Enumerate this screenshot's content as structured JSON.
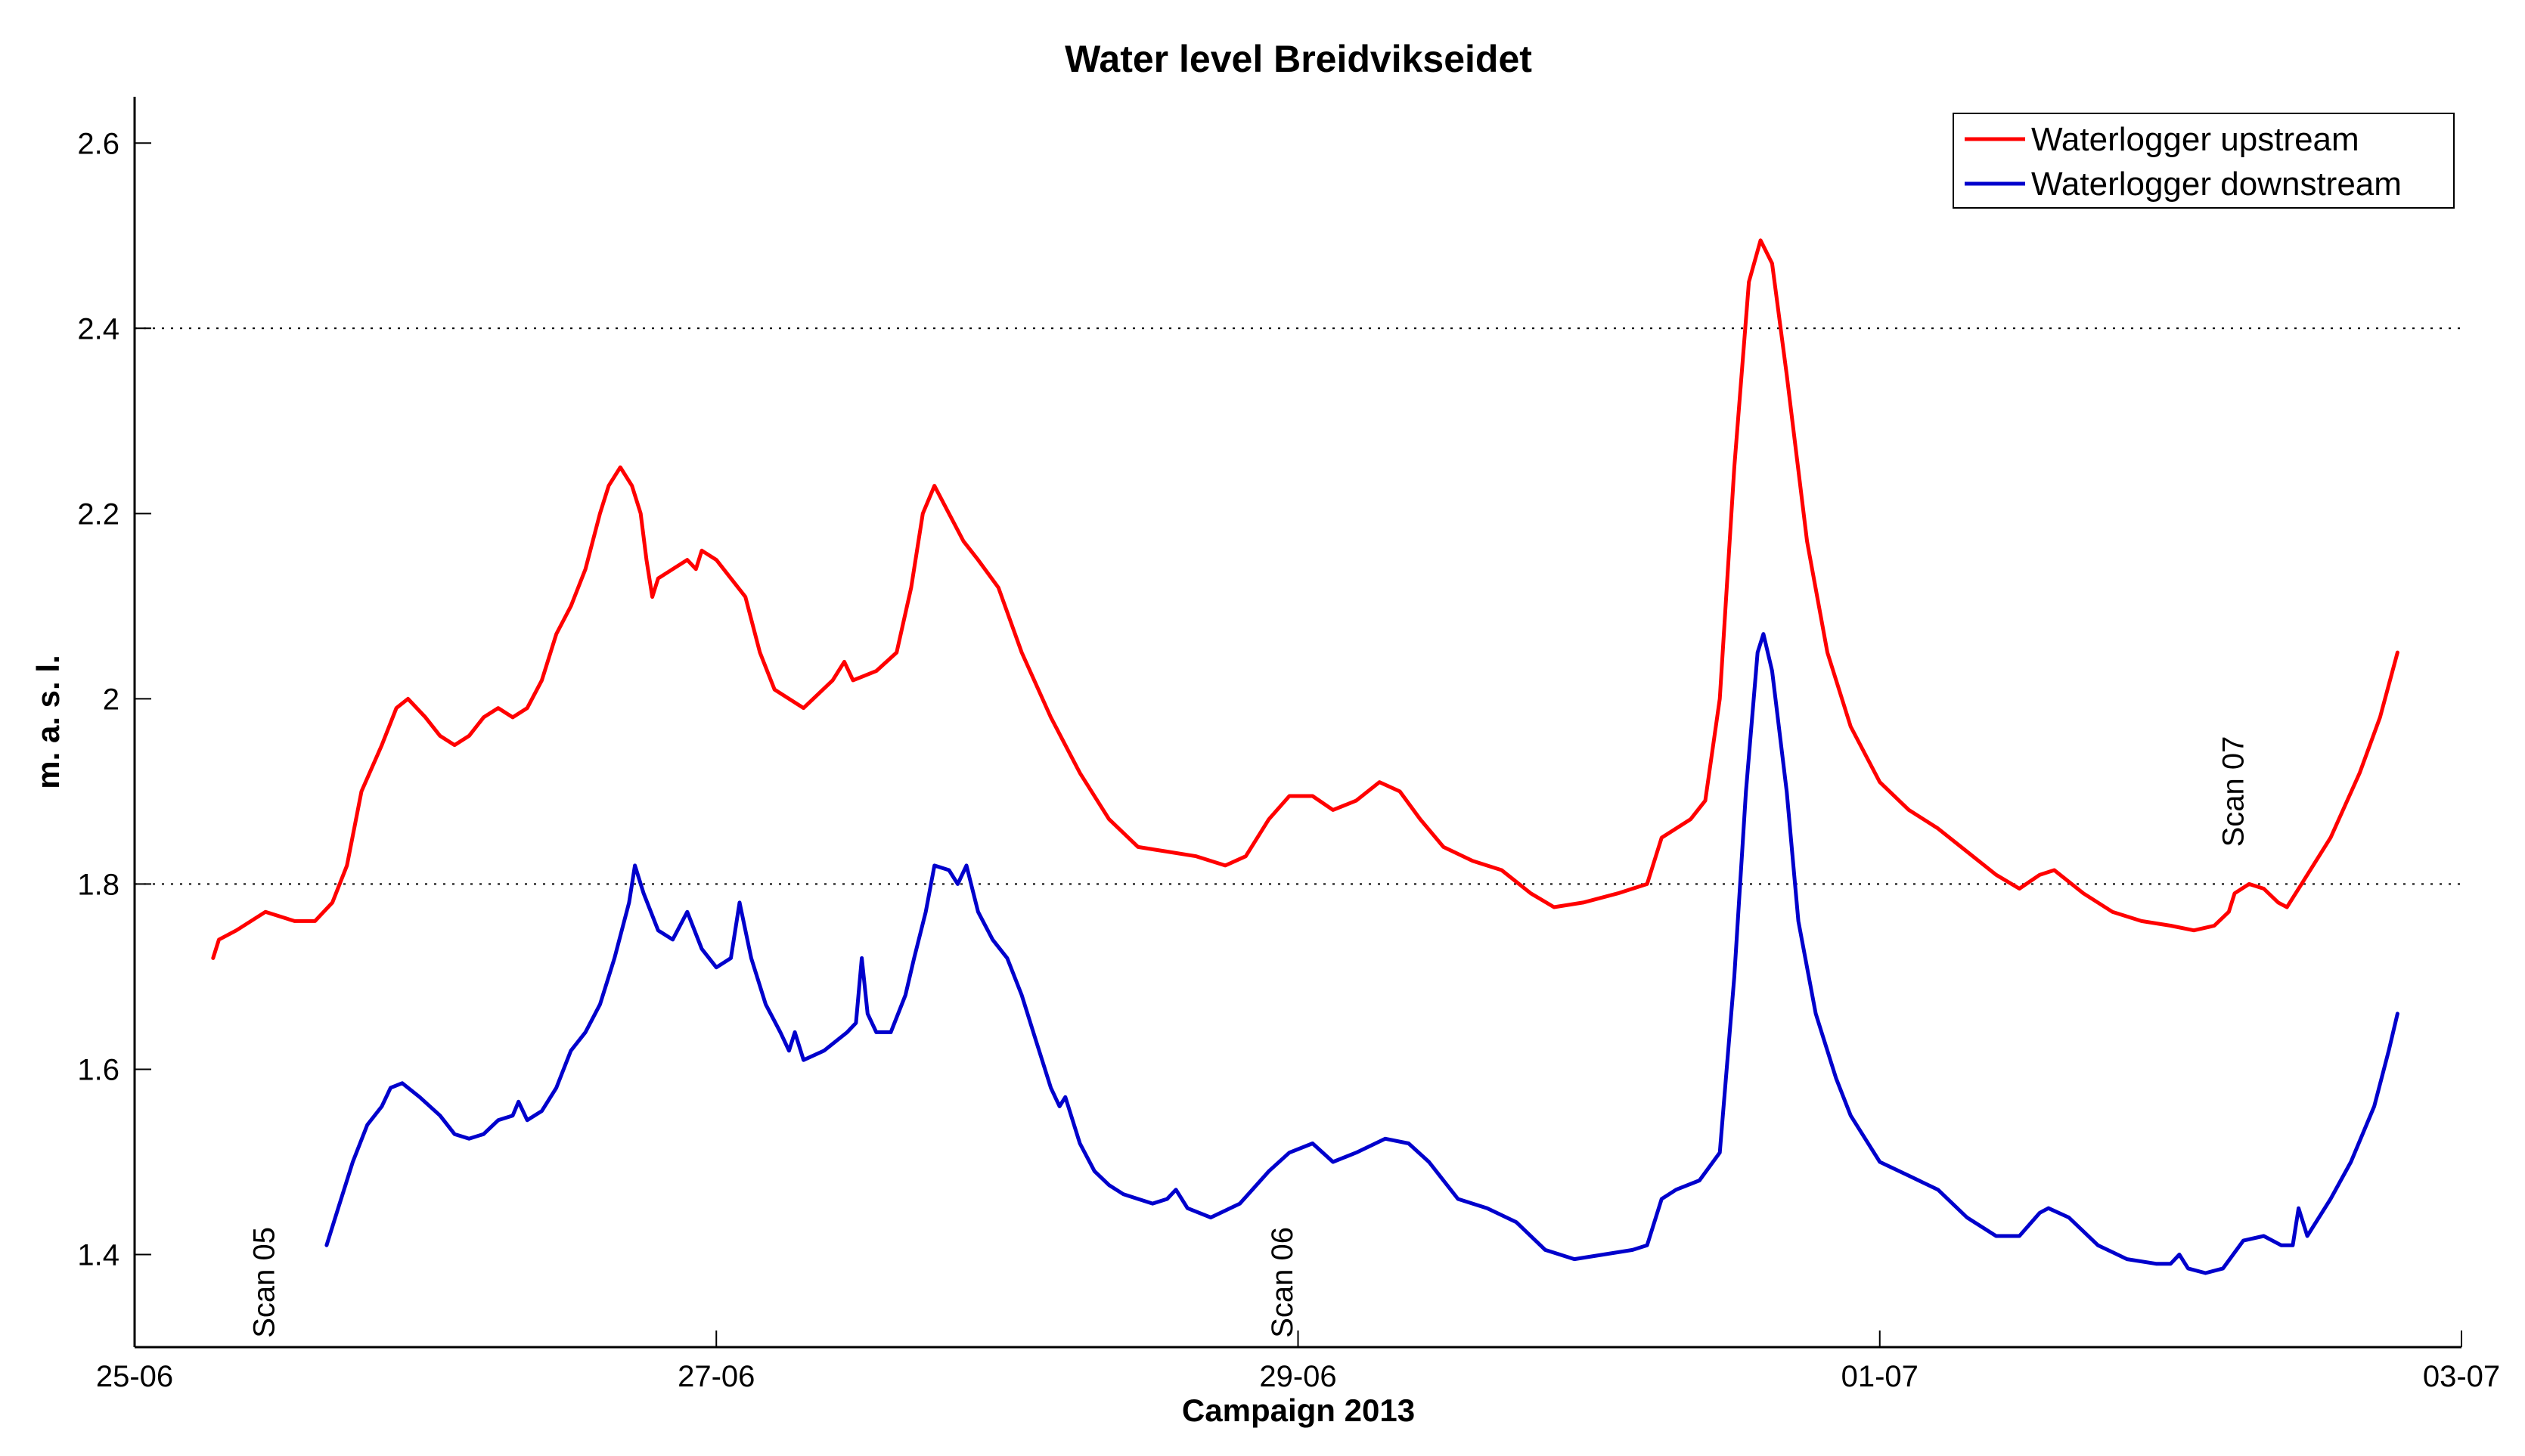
{
  "chart_data": {
    "type": "line",
    "title": "Water level Breidvikseidet",
    "xlabel": "Campaign 2013",
    "ylabel": "m. a. s. l.",
    "xlim": [
      0,
      8
    ],
    "ylim": [
      1.3,
      2.65
    ],
    "x_tick_values": [
      0,
      2,
      4,
      6,
      8
    ],
    "x_tick_labels": [
      "25-06",
      "27-06",
      "29-06",
      "01-07",
      "03-07"
    ],
    "y_tick_values": [
      1.4,
      1.6,
      1.8,
      2.0,
      2.2,
      2.4,
      2.6
    ],
    "y_tick_labels": [
      "1.4",
      "1.6",
      "1.8",
      "2",
      "2.2",
      "2.4",
      "2.6"
    ],
    "grid_y": [
      1.8,
      2.4
    ],
    "legend_position": "top-right",
    "series": [
      {
        "name": "Waterlogger upstream",
        "color": "#ff0000",
        "points": [
          [
            0.27,
            1.72
          ],
          [
            0.29,
            1.74
          ],
          [
            0.35,
            1.75
          ],
          [
            0.45,
            1.77
          ],
          [
            0.55,
            1.76
          ],
          [
            0.62,
            1.76
          ],
          [
            0.68,
            1.78
          ],
          [
            0.73,
            1.82
          ],
          [
            0.78,
            1.9
          ],
          [
            0.85,
            1.95
          ],
          [
            0.9,
            1.99
          ],
          [
            0.94,
            2.0
          ],
          [
            1.0,
            1.98
          ],
          [
            1.05,
            1.96
          ],
          [
            1.1,
            1.95
          ],
          [
            1.15,
            1.96
          ],
          [
            1.2,
            1.98
          ],
          [
            1.25,
            1.99
          ],
          [
            1.3,
            1.98
          ],
          [
            1.35,
            1.99
          ],
          [
            1.4,
            2.02
          ],
          [
            1.45,
            2.07
          ],
          [
            1.5,
            2.1
          ],
          [
            1.55,
            2.14
          ],
          [
            1.6,
            2.2
          ],
          [
            1.63,
            2.23
          ],
          [
            1.67,
            2.25
          ],
          [
            1.71,
            2.23
          ],
          [
            1.74,
            2.2
          ],
          [
            1.76,
            2.15
          ],
          [
            1.78,
            2.11
          ],
          [
            1.8,
            2.13
          ],
          [
            1.85,
            2.14
          ],
          [
            1.9,
            2.15
          ],
          [
            1.93,
            2.14
          ],
          [
            1.95,
            2.16
          ],
          [
            2.0,
            2.15
          ],
          [
            2.05,
            2.13
          ],
          [
            2.1,
            2.11
          ],
          [
            2.15,
            2.05
          ],
          [
            2.2,
            2.01
          ],
          [
            2.3,
            1.99
          ],
          [
            2.4,
            2.02
          ],
          [
            2.44,
            2.04
          ],
          [
            2.47,
            2.02
          ],
          [
            2.55,
            2.03
          ],
          [
            2.62,
            2.05
          ],
          [
            2.67,
            2.12
          ],
          [
            2.71,
            2.2
          ],
          [
            2.75,
            2.23
          ],
          [
            2.8,
            2.2
          ],
          [
            2.85,
            2.17
          ],
          [
            2.9,
            2.15
          ],
          [
            2.97,
            2.12
          ],
          [
            3.05,
            2.05
          ],
          [
            3.15,
            1.98
          ],
          [
            3.25,
            1.92
          ],
          [
            3.35,
            1.87
          ],
          [
            3.45,
            1.84
          ],
          [
            3.55,
            1.835
          ],
          [
            3.65,
            1.83
          ],
          [
            3.75,
            1.82
          ],
          [
            3.82,
            1.83
          ],
          [
            3.9,
            1.87
          ],
          [
            3.97,
            1.895
          ],
          [
            4.05,
            1.895
          ],
          [
            4.12,
            1.88
          ],
          [
            4.2,
            1.89
          ],
          [
            4.28,
            1.91
          ],
          [
            4.35,
            1.9
          ],
          [
            4.42,
            1.87
          ],
          [
            4.5,
            1.84
          ],
          [
            4.6,
            1.825
          ],
          [
            4.7,
            1.815
          ],
          [
            4.8,
            1.79
          ],
          [
            4.88,
            1.775
          ],
          [
            4.98,
            1.78
          ],
          [
            5.1,
            1.79
          ],
          [
            5.2,
            1.8
          ],
          [
            5.25,
            1.85
          ],
          [
            5.3,
            1.86
          ],
          [
            5.35,
            1.87
          ],
          [
            5.4,
            1.89
          ],
          [
            5.45,
            2.0
          ],
          [
            5.5,
            2.25
          ],
          [
            5.55,
            2.45
          ],
          [
            5.59,
            2.495
          ],
          [
            5.63,
            2.47
          ],
          [
            5.68,
            2.35
          ],
          [
            5.75,
            2.17
          ],
          [
            5.82,
            2.05
          ],
          [
            5.9,
            1.97
          ],
          [
            6.0,
            1.91
          ],
          [
            6.1,
            1.88
          ],
          [
            6.2,
            1.86
          ],
          [
            6.3,
            1.835
          ],
          [
            6.4,
            1.81
          ],
          [
            6.48,
            1.795
          ],
          [
            6.55,
            1.81
          ],
          [
            6.6,
            1.815
          ],
          [
            6.7,
            1.79
          ],
          [
            6.8,
            1.77
          ],
          [
            6.9,
            1.76
          ],
          [
            7.0,
            1.755
          ],
          [
            7.08,
            1.75
          ],
          [
            7.15,
            1.755
          ],
          [
            7.2,
            1.77
          ],
          [
            7.22,
            1.79
          ],
          [
            7.27,
            1.8
          ],
          [
            7.32,
            1.795
          ],
          [
            7.37,
            1.78
          ],
          [
            7.4,
            1.775
          ],
          [
            7.45,
            1.8
          ],
          [
            7.55,
            1.85
          ],
          [
            7.65,
            1.92
          ],
          [
            7.72,
            1.98
          ],
          [
            7.78,
            2.05
          ]
        ]
      },
      {
        "name": "Waterlogger downstream",
        "color": "#0000cc",
        "points": [
          [
            0.66,
            1.41
          ],
          [
            0.7,
            1.45
          ],
          [
            0.75,
            1.5
          ],
          [
            0.8,
            1.54
          ],
          [
            0.85,
            1.56
          ],
          [
            0.88,
            1.58
          ],
          [
            0.92,
            1.585
          ],
          [
            0.98,
            1.57
          ],
          [
            1.05,
            1.55
          ],
          [
            1.1,
            1.53
          ],
          [
            1.15,
            1.525
          ],
          [
            1.2,
            1.53
          ],
          [
            1.25,
            1.545
          ],
          [
            1.3,
            1.55
          ],
          [
            1.32,
            1.565
          ],
          [
            1.35,
            1.545
          ],
          [
            1.4,
            1.555
          ],
          [
            1.45,
            1.58
          ],
          [
            1.5,
            1.62
          ],
          [
            1.55,
            1.64
          ],
          [
            1.6,
            1.67
          ],
          [
            1.65,
            1.72
          ],
          [
            1.7,
            1.78
          ],
          [
            1.72,
            1.82
          ],
          [
            1.75,
            1.79
          ],
          [
            1.8,
            1.75
          ],
          [
            1.85,
            1.74
          ],
          [
            1.9,
            1.77
          ],
          [
            1.95,
            1.73
          ],
          [
            2.0,
            1.71
          ],
          [
            2.05,
            1.72
          ],
          [
            2.08,
            1.78
          ],
          [
            2.12,
            1.72
          ],
          [
            2.17,
            1.67
          ],
          [
            2.22,
            1.64
          ],
          [
            2.25,
            1.62
          ],
          [
            2.27,
            1.64
          ],
          [
            2.3,
            1.61
          ],
          [
            2.37,
            1.62
          ],
          [
            2.45,
            1.64
          ],
          [
            2.48,
            1.65
          ],
          [
            2.5,
            1.72
          ],
          [
            2.52,
            1.66
          ],
          [
            2.55,
            1.64
          ],
          [
            2.6,
            1.64
          ],
          [
            2.65,
            1.68
          ],
          [
            2.68,
            1.72
          ],
          [
            2.72,
            1.77
          ],
          [
            2.75,
            1.82
          ],
          [
            2.8,
            1.815
          ],
          [
            2.83,
            1.8
          ],
          [
            2.86,
            1.82
          ],
          [
            2.9,
            1.77
          ],
          [
            2.95,
            1.74
          ],
          [
            3.0,
            1.72
          ],
          [
            3.05,
            1.68
          ],
          [
            3.1,
            1.63
          ],
          [
            3.15,
            1.58
          ],
          [
            3.18,
            1.56
          ],
          [
            3.2,
            1.57
          ],
          [
            3.25,
            1.52
          ],
          [
            3.3,
            1.49
          ],
          [
            3.35,
            1.475
          ],
          [
            3.4,
            1.465
          ],
          [
            3.45,
            1.46
          ],
          [
            3.5,
            1.455
          ],
          [
            3.55,
            1.46
          ],
          [
            3.58,
            1.47
          ],
          [
            3.62,
            1.45
          ],
          [
            3.7,
            1.44
          ],
          [
            3.8,
            1.455
          ],
          [
            3.9,
            1.49
          ],
          [
            3.97,
            1.51
          ],
          [
            4.05,
            1.52
          ],
          [
            4.12,
            1.5
          ],
          [
            4.2,
            1.51
          ],
          [
            4.3,
            1.525
          ],
          [
            4.38,
            1.52
          ],
          [
            4.45,
            1.5
          ],
          [
            4.55,
            1.46
          ],
          [
            4.65,
            1.45
          ],
          [
            4.75,
            1.435
          ],
          [
            4.85,
            1.405
          ],
          [
            4.95,
            1.395
          ],
          [
            5.05,
            1.4
          ],
          [
            5.15,
            1.405
          ],
          [
            5.2,
            1.41
          ],
          [
            5.25,
            1.46
          ],
          [
            5.3,
            1.47
          ],
          [
            5.38,
            1.48
          ],
          [
            5.45,
            1.51
          ],
          [
            5.5,
            1.7
          ],
          [
            5.54,
            1.9
          ],
          [
            5.58,
            2.05
          ],
          [
            5.6,
            2.07
          ],
          [
            5.63,
            2.03
          ],
          [
            5.68,
            1.9
          ],
          [
            5.72,
            1.76
          ],
          [
            5.78,
            1.66
          ],
          [
            5.85,
            1.59
          ],
          [
            5.9,
            1.55
          ],
          [
            6.0,
            1.5
          ],
          [
            6.1,
            1.485
          ],
          [
            6.2,
            1.47
          ],
          [
            6.3,
            1.44
          ],
          [
            6.4,
            1.42
          ],
          [
            6.48,
            1.42
          ],
          [
            6.55,
            1.445
          ],
          [
            6.58,
            1.45
          ],
          [
            6.65,
            1.44
          ],
          [
            6.75,
            1.41
          ],
          [
            6.85,
            1.395
          ],
          [
            6.95,
            1.39
          ],
          [
            7.0,
            1.39
          ],
          [
            7.03,
            1.4
          ],
          [
            7.06,
            1.385
          ],
          [
            7.12,
            1.38
          ],
          [
            7.18,
            1.385
          ],
          [
            7.25,
            1.415
          ],
          [
            7.32,
            1.42
          ],
          [
            7.38,
            1.41
          ],
          [
            7.42,
            1.41
          ],
          [
            7.44,
            1.45
          ],
          [
            7.47,
            1.42
          ],
          [
            7.55,
            1.46
          ],
          [
            7.62,
            1.5
          ],
          [
            7.7,
            1.56
          ],
          [
            7.75,
            1.62
          ],
          [
            7.78,
            1.66
          ]
        ]
      }
    ],
    "annotations": [
      {
        "text": "Scan 05",
        "x": 0.48,
        "y": 1.31
      },
      {
        "text": "Scan 06",
        "x": 3.98,
        "y": 1.31
      },
      {
        "text": "Scan 07",
        "x": 7.25,
        "y": 1.84
      }
    ]
  }
}
